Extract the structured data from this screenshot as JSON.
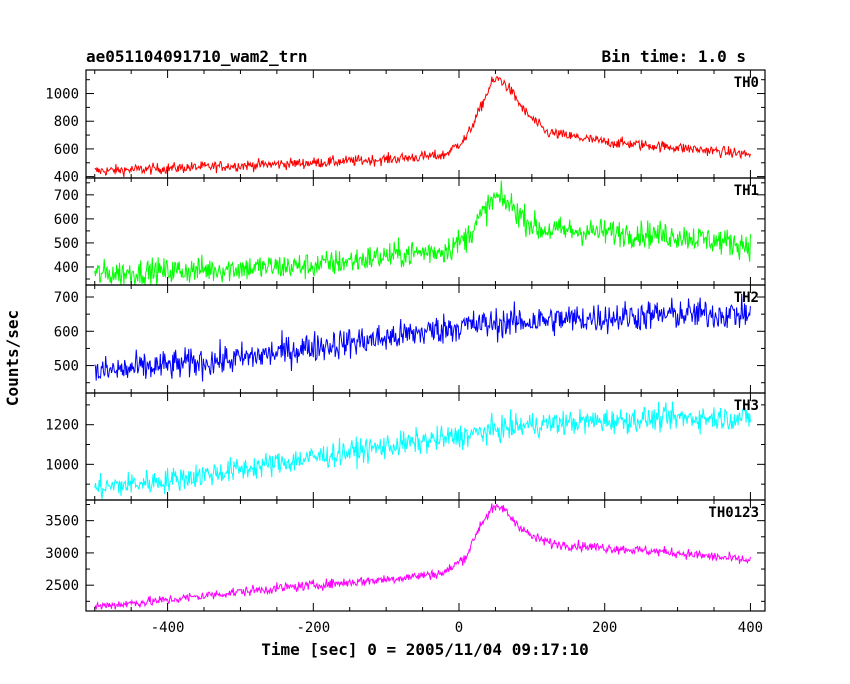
{
  "header": {
    "title": "ae051104091710_wam2_trn",
    "bin_time": "Bin time: 1.0 s"
  },
  "chart_data": {
    "type": "line",
    "title": "ae051104091710_wam2_trn",
    "subtitle": "Bin time: 1.0 s",
    "xlabel": "Time [sec] 0 = 2005/11/04 09:17:10",
    "ylabel": "Counts/sec",
    "xlim": [
      -512,
      420
    ],
    "x_ticks": [
      -400,
      -200,
      0,
      200,
      400
    ],
    "bin_time_sec": 1.0,
    "panels": [
      {
        "name": "TH0",
        "color": "#ff0000",
        "ylim": [
          390,
          1170
        ],
        "y_ticks": [
          400,
          600,
          800,
          1000
        ],
        "x": [
          -500,
          -400,
          -300,
          -200,
          -100,
          -20,
          10,
          30,
          45,
          55,
          70,
          90,
          120,
          200,
          300,
          400
        ],
        "y": [
          440,
          460,
          480,
          500,
          525,
          555,
          680,
          900,
          1080,
          1110,
          1030,
          870,
          720,
          650,
          610,
          560
        ],
        "noise": 28
      },
      {
        "name": "TH1",
        "color": "#00ff00",
        "ylim": [
          325,
          770
        ],
        "y_ticks": [
          400,
          500,
          600,
          700
        ],
        "x": [
          -500,
          -300,
          -200,
          -100,
          -20,
          10,
          30,
          50,
          70,
          90,
          110,
          200,
          300,
          400
        ],
        "y": [
          370,
          395,
          405,
          445,
          470,
          520,
          610,
          690,
          660,
          600,
          555,
          545,
          530,
          490
        ],
        "noise": 40
      },
      {
        "name": "TH2",
        "color": "#0000ff",
        "ylim": [
          420,
          735
        ],
        "y_ticks": [
          500,
          600,
          700
        ],
        "x": [
          -500,
          -400,
          -300,
          -200,
          -100,
          0,
          100,
          200,
          300,
          400
        ],
        "y": [
          480,
          500,
          520,
          555,
          580,
          615,
          630,
          640,
          650,
          650
        ],
        "noise": 32
      },
      {
        "name": "TH3",
        "color": "#00ffff",
        "ylim": [
          820,
          1360
        ],
        "y_ticks": [
          1000,
          1200
        ],
        "x": [
          -500,
          -400,
          -300,
          -200,
          -100,
          0,
          60,
          100,
          200,
          300,
          400
        ],
        "y": [
          880,
          920,
          975,
          1035,
          1090,
          1140,
          1180,
          1200,
          1220,
          1235,
          1235
        ],
        "noise": 45
      },
      {
        "name": "TH0123",
        "color": "#ff00ff",
        "ylim": [
          2100,
          3820
        ],
        "y_ticks": [
          2500,
          3000,
          3500
        ],
        "x": [
          -500,
          -400,
          -300,
          -200,
          -100,
          -20,
          10,
          30,
          45,
          60,
          75,
          100,
          130,
          200,
          300,
          400
        ],
        "y": [
          2170,
          2270,
          2400,
          2500,
          2590,
          2690,
          2950,
          3450,
          3680,
          3700,
          3500,
          3250,
          3140,
          3080,
          3000,
          2880
        ],
        "noise": 55
      }
    ]
  }
}
